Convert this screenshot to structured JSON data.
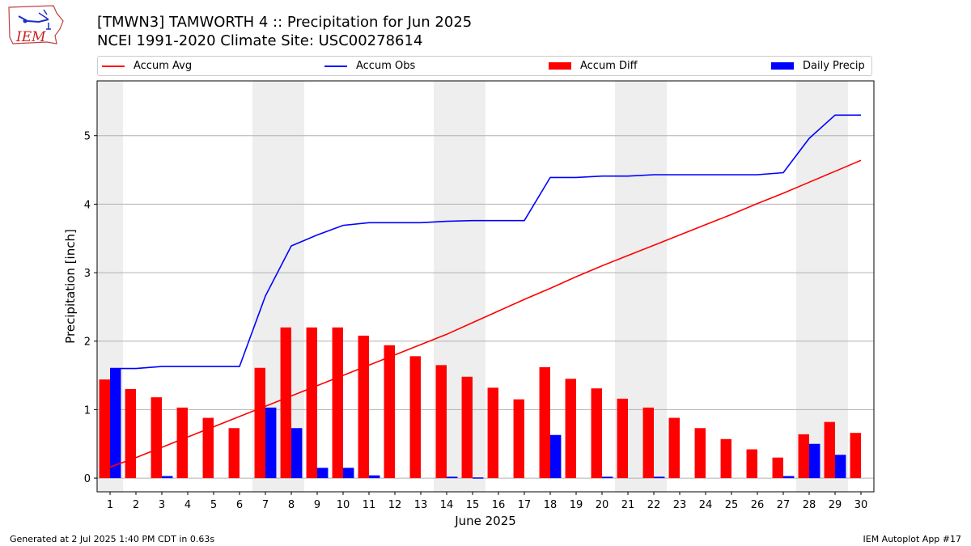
{
  "title_line1": "[TMWN3] TAMWORTH 4 :: Precipitation for Jun 2025",
  "title_line2": "NCEI 1991-2020 Climate Site: USC00278614",
  "logo_text": "IEM",
  "footer_left": "Generated at 2 Jul 2025 1:40 PM CDT in 0.63s",
  "footer_right": "IEM Autoplot App #17",
  "legend": [
    {
      "label": "Accum Avg",
      "kind": "line",
      "color": "#ff0000"
    },
    {
      "label": "Accum Obs",
      "kind": "line",
      "color": "#0000ff"
    },
    {
      "label": "Accum Diff",
      "kind": "bar",
      "color": "#ff0000"
    },
    {
      "label": "Daily Precip",
      "kind": "bar",
      "color": "#0000ff"
    }
  ],
  "chart_data": {
    "type": "bar",
    "xlabel": "June 2025",
    "ylabel": "Precipitation [inch]",
    "x": [
      1,
      2,
      3,
      4,
      5,
      6,
      7,
      8,
      9,
      10,
      11,
      12,
      13,
      14,
      15,
      16,
      17,
      18,
      19,
      20,
      21,
      22,
      23,
      24,
      25,
      26,
      27,
      28,
      29,
      30
    ],
    "ylim": [
      -0.2,
      5.8
    ],
    "xlim": [
      0.5,
      30.5
    ],
    "yticks": [
      0,
      1,
      2,
      3,
      4,
      5
    ],
    "grid": "y",
    "legend_position": "top",
    "weekend_shading": [
      [
        0.5,
        1.5
      ],
      [
        6.5,
        8.5
      ],
      [
        13.5,
        15.5
      ],
      [
        20.5,
        22.5
      ],
      [
        27.5,
        29.5
      ]
    ],
    "series": [
      {
        "name": "Accum Avg",
        "kind": "line",
        "color": "#ff0000",
        "values": [
          0.16,
          0.3,
          0.45,
          0.6,
          0.75,
          0.9,
          1.05,
          1.2,
          1.35,
          1.5,
          1.65,
          1.8,
          1.95,
          2.1,
          2.27,
          2.44,
          2.61,
          2.77,
          2.94,
          3.1,
          3.25,
          3.4,
          3.55,
          3.7,
          3.85,
          4.01,
          4.16,
          4.32,
          4.48,
          4.64
        ]
      },
      {
        "name": "Accum Obs",
        "kind": "line",
        "color": "#0000ff",
        "values": [
          1.6,
          1.6,
          1.63,
          1.63,
          1.63,
          1.63,
          2.66,
          3.39,
          3.55,
          3.69,
          3.73,
          3.73,
          3.73,
          3.75,
          3.76,
          3.76,
          3.76,
          4.39,
          4.39,
          4.41,
          4.41,
          4.43,
          4.43,
          4.43,
          4.43,
          4.43,
          4.46,
          4.96,
          5.3,
          5.3
        ]
      },
      {
        "name": "Accum Diff",
        "kind": "bar",
        "color": "#ff0000",
        "values": [
          1.44,
          1.3,
          1.18,
          1.03,
          0.88,
          0.73,
          1.61,
          2.2,
          2.2,
          2.2,
          2.08,
          1.94,
          1.78,
          1.65,
          1.48,
          1.32,
          1.15,
          1.62,
          1.45,
          1.31,
          1.16,
          1.03,
          0.88,
          0.73,
          0.57,
          0.42,
          0.3,
          0.64,
          0.82,
          0.66
        ]
      },
      {
        "name": "Daily Precip",
        "kind": "bar",
        "color": "#0000ff",
        "values": [
          1.6,
          0.0,
          0.03,
          0.0,
          0.0,
          0.0,
          1.03,
          0.73,
          0.15,
          0.15,
          0.04,
          0.0,
          0.0,
          0.02,
          0.01,
          0.0,
          0.0,
          0.63,
          0.0,
          0.02,
          0.0,
          0.02,
          0.0,
          0.0,
          0.0,
          0.0,
          0.03,
          0.5,
          0.34,
          0.0
        ]
      }
    ]
  }
}
